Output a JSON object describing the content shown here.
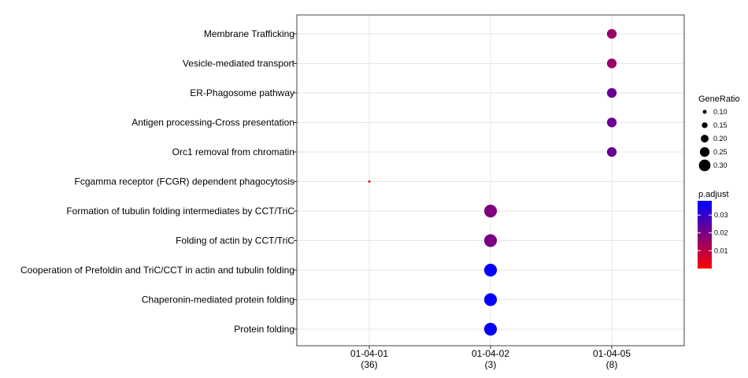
{
  "chart_data": {
    "type": "scatter",
    "title": "",
    "xlabel": "",
    "ylabel": "",
    "grid": true,
    "legend_position": "right",
    "categories_y": [
      "Membrane Trafficking",
      "Vesicle-mediated transport",
      "ER-Phagosome pathway",
      "Antigen processing-Cross presentation",
      "Orc1 removal from chromatin",
      "Fcgamma receptor (FCGR) dependent phagocytosis",
      "Formation of tubulin folding intermediates by CCT/TriC",
      "Folding of actin by CCT/TriC",
      "Cooperation of Prefoldin and TriC/CCT  in actin and tubulin folding",
      "Chaperonin-mediated protein folding",
      "Protein folding"
    ],
    "x_groups": [
      {
        "label": "01-04-01",
        "count": "(36)"
      },
      {
        "label": "01-04-02",
        "count": "(3)"
      },
      {
        "label": "01-04-05",
        "count": "(8)"
      }
    ],
    "points": [
      {
        "term": "Membrane Trafficking",
        "group": "01-04-05",
        "gene_ratio": 0.25,
        "p_adjust": 0.015
      },
      {
        "term": "Vesicle-mediated transport",
        "group": "01-04-05",
        "gene_ratio": 0.25,
        "p_adjust": 0.015
      },
      {
        "term": "ER-Phagosome pathway",
        "group": "01-04-05",
        "gene_ratio": 0.25,
        "p_adjust": 0.022
      },
      {
        "term": "Antigen processing-Cross presentation",
        "group": "01-04-05",
        "gene_ratio": 0.25,
        "p_adjust": 0.022
      },
      {
        "term": "Orc1 removal from chromatin",
        "group": "01-04-05",
        "gene_ratio": 0.25,
        "p_adjust": 0.022
      },
      {
        "term": "Fcgamma receptor (FCGR) dependent phagocytosis",
        "group": "01-04-01",
        "gene_ratio": 0.03,
        "p_adjust": 0.0005
      },
      {
        "term": "Formation of tubulin folding intermediates by CCT/TriC",
        "group": "01-04-02",
        "gene_ratio": 0.33,
        "p_adjust": 0.019
      },
      {
        "term": "Folding of actin by CCT/TriC",
        "group": "01-04-02",
        "gene_ratio": 0.33,
        "p_adjust": 0.02
      },
      {
        "term": "Cooperation of Prefoldin and TriC/CCT  in actin and tubulin folding",
        "group": "01-04-02",
        "gene_ratio": 0.33,
        "p_adjust": 0.037
      },
      {
        "term": "Chaperonin-mediated protein folding",
        "group": "01-04-02",
        "gene_ratio": 0.33,
        "p_adjust": 0.037
      },
      {
        "term": "Protein folding",
        "group": "01-04-02",
        "gene_ratio": 0.33,
        "p_adjust": 0.037
      }
    ],
    "legend_size": {
      "title": "GeneRatio",
      "items": [
        {
          "label": "0.10",
          "value": 0.1
        },
        {
          "label": "0.15",
          "value": 0.15
        },
        {
          "label": "0.20",
          "value": 0.2
        },
        {
          "label": "0.25",
          "value": 0.25
        },
        {
          "label": "0.30",
          "value": 0.3
        }
      ]
    },
    "legend_color": {
      "title": "p.adjust",
      "range": [
        0.0,
        0.038
      ],
      "ticks": [
        {
          "label": "0.03",
          "value": 0.03
        },
        {
          "label": "0.02",
          "value": 0.02
        },
        {
          "label": "0.01",
          "value": 0.01
        }
      ],
      "low_color": "#FF0000",
      "high_color": "#0000FF"
    }
  }
}
